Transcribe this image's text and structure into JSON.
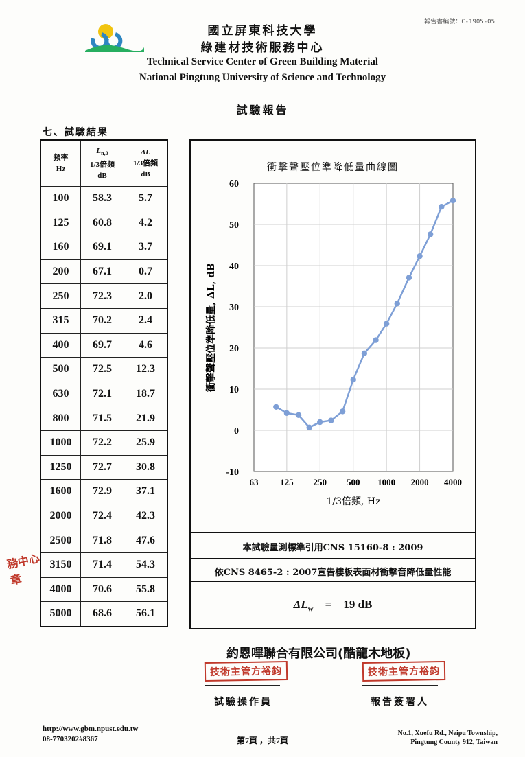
{
  "header": {
    "report_number": "報告書編號：C-1905-05",
    "university_zh": "國立屏東科技大學",
    "center_zh": "綠建材技術服務中心",
    "center_en": "Technical Service Center of Green Building Material",
    "university_en": "National Pingtung University of Science and Technology",
    "report_title": "試驗報告"
  },
  "section_title": "七、試驗結果",
  "table": {
    "headers": {
      "freq": [
        "頻率",
        "Hz"
      ],
      "ln0": [
        "L",
        "n,0",
        "1/3倍頻",
        "dB"
      ],
      "dl": [
        "ΔL",
        "1/3倍頻",
        "dB"
      ]
    },
    "rows": [
      [
        "100",
        "58.3",
        "5.7"
      ],
      [
        "125",
        "60.8",
        "4.2"
      ],
      [
        "160",
        "69.1",
        "3.7"
      ],
      [
        "200",
        "67.1",
        "0.7"
      ],
      [
        "250",
        "72.3",
        "2.0"
      ],
      [
        "315",
        "70.2",
        "2.4"
      ],
      [
        "400",
        "69.7",
        "4.6"
      ],
      [
        "500",
        "72.5",
        "12.3"
      ],
      [
        "630",
        "72.1",
        "18.7"
      ],
      [
        "800",
        "71.5",
        "21.9"
      ],
      [
        "1000",
        "72.2",
        "25.9"
      ],
      [
        "1250",
        "72.7",
        "30.8"
      ],
      [
        "1600",
        "72.9",
        "37.1"
      ],
      [
        "2000",
        "72.4",
        "42.3"
      ],
      [
        "2500",
        "71.8",
        "47.6"
      ],
      [
        "3150",
        "71.4",
        "54.3"
      ],
      [
        "4000",
        "70.6",
        "55.8"
      ],
      [
        "5000",
        "68.6",
        "56.1"
      ]
    ]
  },
  "chart_data": {
    "type": "line",
    "title": "衝擊聲壓位準降低量曲線圖",
    "xlabel": "1/3倍頻, Hz",
    "ylabel": "衝擊聲壓位準降低量, ΔL, dB",
    "x_scale": "log",
    "xlim": [
      63,
      4000
    ],
    "ylim": [
      -10,
      60
    ],
    "x_ticks": [
      "63",
      "125",
      "250",
      "500",
      "1000",
      "2000",
      "4000"
    ],
    "y_ticks": [
      "60",
      "50",
      "40",
      "30",
      "20",
      "10",
      "0",
      "-10"
    ],
    "grid": true,
    "color": "#7e9fd6",
    "series": [
      {
        "x": [
          100,
          125,
          160,
          200,
          250,
          315,
          400,
          500,
          630,
          800,
          1000,
          1250,
          1600,
          2000,
          2500,
          3150,
          4000
        ],
        "values": [
          5.7,
          4.2,
          3.7,
          0.7,
          2.0,
          2.4,
          4.6,
          12.3,
          18.7,
          21.9,
          25.9,
          30.8,
          37.1,
          42.3,
          47.6,
          54.3,
          55.8
        ]
      }
    ]
  },
  "standard_line1": "本試驗量測標準引用CNS 15160-8 : 2009",
  "standard_line2": "依CNS 8465-2 : 2007宣告樓板表面材衝擊音降低量性能",
  "result": {
    "symbol": "ΔL",
    "subscript": "w",
    "equals": "=",
    "value": "19 dB"
  },
  "company": "約恩嗶聯合有限公司(酷龍木地板)",
  "signatures": [
    {
      "stamp": "技術主管方裕鈞",
      "label": "試驗操作員"
    },
    {
      "stamp": "技術主管方裕鈞",
      "label": "報告簽署人"
    }
  ],
  "seal_text": "務中心章",
  "footer": {
    "url": "http://www.gbm.npust.edu.tw",
    "phone": "08-7703202#8367",
    "page": "第7頁 ，共7頁",
    "address1": "No.1, Xuefu Rd., Neipu Township,",
    "address2": "Pingtung County 912, Taiwan"
  }
}
